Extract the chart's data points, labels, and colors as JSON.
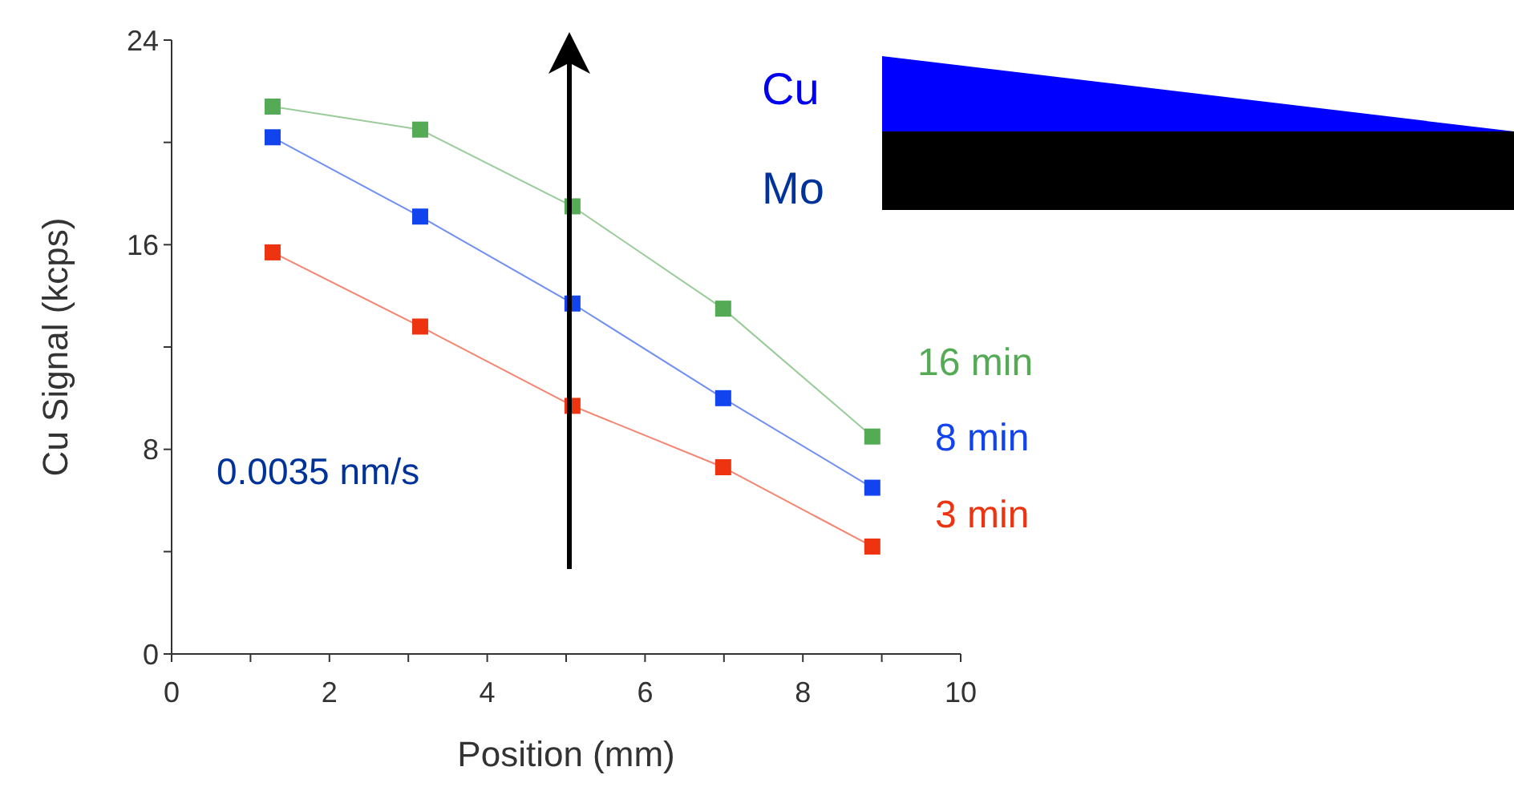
{
  "chart_data": {
    "type": "line",
    "xlabel": "Position (mm)",
    "ylabel": "Cu Signal (kcps)",
    "x": [
      1.28,
      3.15,
      5.08,
      6.99,
      8.88
    ],
    "series": [
      {
        "name": "16 min",
        "color": "#55aa55",
        "values": [
          21.4,
          20.5,
          17.5,
          13.5,
          8.5
        ]
      },
      {
        "name": "8 min",
        "color": "#1144ee",
        "values": [
          20.2,
          17.1,
          13.7,
          10.0,
          6.5
        ]
      },
      {
        "name": "3 min",
        "color": "#ee3311",
        "values": [
          15.7,
          12.8,
          9.7,
          7.3,
          4.2
        ]
      }
    ],
    "xlim": [
      0,
      10
    ],
    "xticks": [
      0,
      {
        "value": 1,
        "label": null
      },
      2,
      {
        "value": 3,
        "label": null
      },
      4,
      {
        "value": 5,
        "label": null
      },
      6,
      {
        "value": 7,
        "label": null
      },
      8,
      {
        "value": 9,
        "label": null
      },
      10
    ],
    "ylim": [
      0,
      24
    ],
    "yticks": [
      0,
      {
        "value": 4,
        "label": null
      },
      8,
      {
        "value": 12,
        "label": null
      },
      16,
      {
        "value": 20,
        "label": null
      },
      24
    ],
    "marker": "square",
    "line_style": "solid",
    "grid": false,
    "annotations": [
      "0.0035 nm/s",
      "Cu",
      "Mo"
    ]
  }
}
